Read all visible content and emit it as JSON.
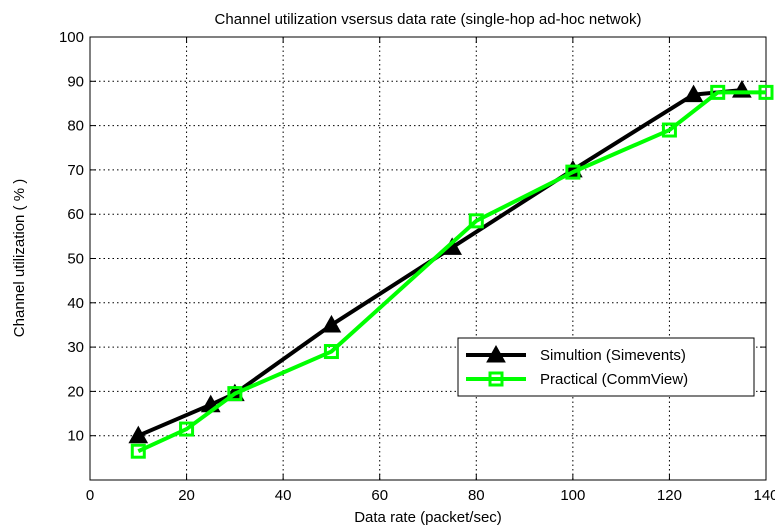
{
  "chart_data": {
    "type": "line",
    "title": "Channel utilization vsersus data rate (single-hop ad-hoc netwok)",
    "xlabel": "Data rate (packet/sec)",
    "ylabel": "Channel utilization ( % )",
    "xlim": [
      0,
      140
    ],
    "ylim": [
      0,
      100
    ],
    "xticks": [
      0,
      20,
      40,
      60,
      80,
      100,
      120,
      140
    ],
    "yticks": [
      10,
      20,
      30,
      40,
      50,
      60,
      70,
      80,
      90,
      100
    ],
    "grid": true,
    "legend_position": "lower-right",
    "series": [
      {
        "name": "Simultion (Simevents)",
        "color": "#000000",
        "marker": "triangle",
        "x": [
          10,
          25,
          30,
          50,
          75,
          100,
          125,
          135
        ],
        "y": [
          10,
          17,
          19.5,
          35,
          52.5,
          70,
          87,
          88
        ]
      },
      {
        "name": "Practical (CommView)",
        "color": "#00ff00",
        "marker": "square",
        "x": [
          10,
          20,
          30,
          50,
          80,
          100,
          120,
          130,
          140
        ],
        "y": [
          6.5,
          11.5,
          19.5,
          29,
          58.5,
          69.5,
          79,
          87.5,
          87.5
        ]
      }
    ]
  }
}
